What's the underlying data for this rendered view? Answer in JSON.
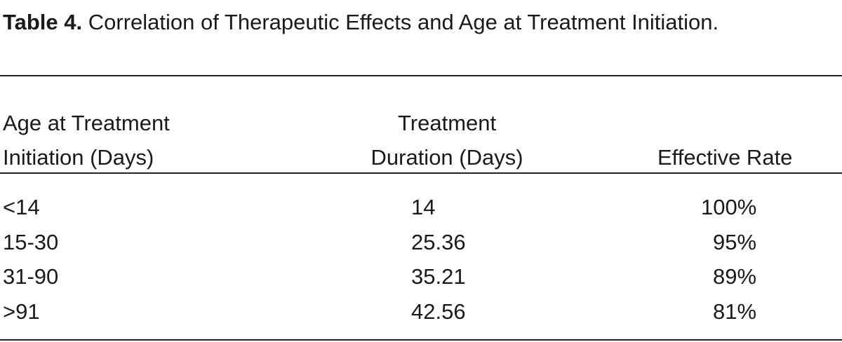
{
  "caption": {
    "label": "Table 4.",
    "text": "Correlation of Therapeutic Effects and Age at Treatment Initiation."
  },
  "table": {
    "header": [
      [
        "Age at Treatment",
        "Initiation (Days)"
      ],
      [
        "Treatment",
        "Duration (Days)"
      ],
      [
        "Effective Rate"
      ]
    ],
    "rows": [
      [
        "<14",
        "14",
        "100%"
      ],
      [
        "15-30",
        "25.36",
        "95%"
      ],
      [
        "31-90",
        "35.21",
        "89%"
      ],
      [
        ">91",
        "42.56",
        "81%"
      ]
    ]
  }
}
